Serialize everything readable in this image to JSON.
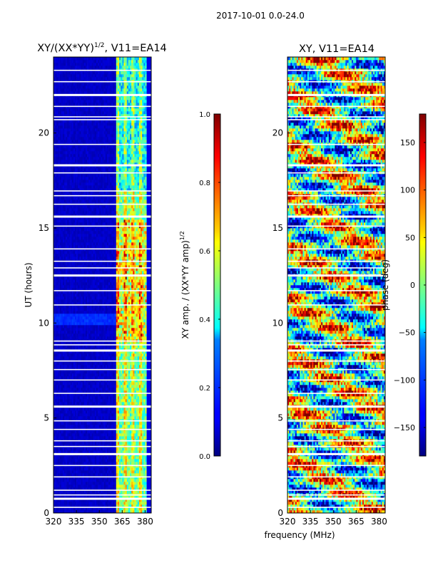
{
  "figure_title": "2017-10-01 0.0-24.0",
  "shared_xlabel": "frequency (MHz)",
  "chart_data": [
    {
      "type": "heatmap",
      "title": "XY/(XX*YY)^{1/2}, V11=EA14",
      "title_main": "XY/(XX*YY)",
      "title_exp": "1/2",
      "title_tail": ", V11=EA14",
      "xlabel": "frequency (MHz)",
      "ylabel": "UT (hours)",
      "xlim": [
        320,
        384
      ],
      "ylim": [
        0,
        24
      ],
      "xticks": [
        320,
        335,
        350,
        365,
        380
      ],
      "yticks": [
        0,
        5,
        10,
        15,
        20
      ],
      "colorbar": {
        "label": "XY amp. / (XX*YY amp)^{1/2}",
        "label_main": "XY amp. / (XX*YY amp)",
        "label_exp": "1/2",
        "range": [
          0.0,
          1.0
        ],
        "ticks": [
          0.0,
          0.2,
          0.4,
          0.6,
          0.8,
          1.0
        ],
        "tick_labels": [
          "0.0",
          "0.2",
          "0.4",
          "0.6",
          "0.8",
          "1.0"
        ],
        "colormap": "jet"
      },
      "data_description": "amplitude ratio mostly ~0.05 below 361 MHz; ~0.3-0.9 between 361 and 381 MHz, highest (~0.8-0.9) near 9-15 UT; white gaps at flagged times"
    },
    {
      "type": "heatmap",
      "title": "XY, V11=EA14",
      "xlabel": "frequency (MHz)",
      "ylabel": "",
      "xlim": [
        320,
        384
      ],
      "ylim": [
        0,
        24
      ],
      "xticks": [
        320,
        335,
        350,
        365,
        380
      ],
      "yticks": [
        0,
        5,
        10,
        15,
        20
      ],
      "colorbar": {
        "label": "phase (deg)",
        "range": [
          -180,
          180
        ],
        "ticks": [
          -150,
          -100,
          -50,
          0,
          50,
          100,
          150
        ],
        "tick_labels": [
          "−150",
          "−100",
          "−50",
          "0",
          "50",
          "100",
          "150"
        ],
        "colormap": "jet"
      },
      "data_description": "XY phase in degrees, noisy across full band, structured bands varying with time"
    }
  ],
  "flag_gaps_hours": [
    0.3,
    0.75,
    0.95,
    1.2,
    1.9,
    2.5,
    3.1,
    3.5,
    3.8,
    4.4,
    4.85,
    5.6,
    6.3,
    7.0,
    7.55,
    8.0,
    8.55,
    8.85,
    9.05,
    10.95,
    11.7,
    12.5,
    12.9,
    13.25,
    13.9,
    15.1,
    15.6,
    16.25,
    16.7,
    16.95,
    17.9,
    18.3,
    19.4,
    20.7,
    20.85,
    21.4,
    22.0,
    22.7,
    23.3
  ]
}
